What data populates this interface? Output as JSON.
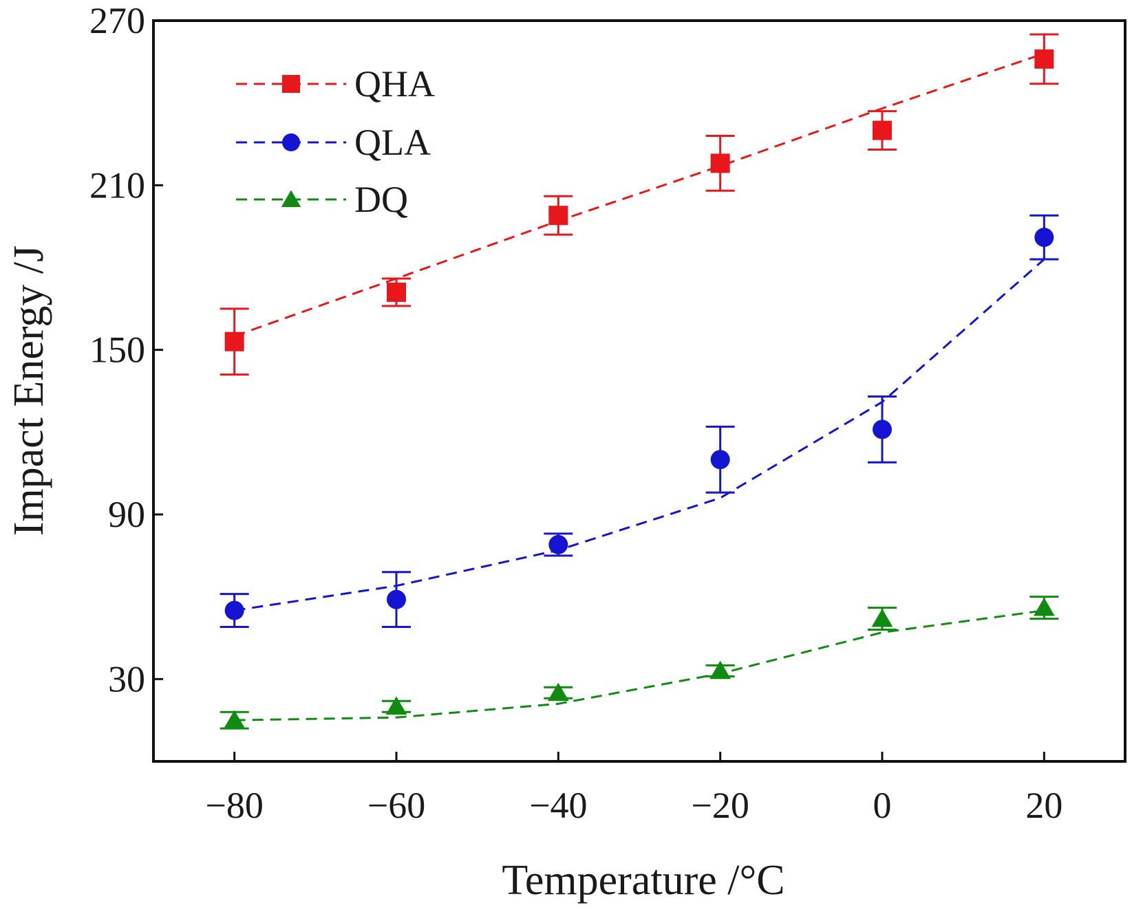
{
  "chart_data": {
    "type": "line",
    "xlabel": "Temperature /°C",
    "ylabel": "Impact Energy /J",
    "x": [
      -80,
      -60,
      -40,
      -20,
      0,
      20
    ],
    "x_ticks": [
      -80,
      -60,
      -40,
      -20,
      0,
      20
    ],
    "x_tick_labels": [
      "−80",
      "−60",
      "−40",
      "−20",
      "0",
      "20"
    ],
    "xlim": [
      -90,
      30
    ],
    "y_ticks": [
      30,
      90,
      150,
      210,
      270
    ],
    "y_tick_labels": [
      "30",
      "90",
      "150",
      "210",
      "270"
    ],
    "ylim": [
      0,
      270
    ],
    "grid": false,
    "legend_position": "top-left",
    "series": [
      {
        "name": "QHA",
        "color": "#e8171b",
        "marker": "square",
        "values": [
          153,
          171,
          199,
          218,
          230,
          256
        ],
        "errors": [
          12,
          5,
          7,
          10,
          7,
          9
        ],
        "fit": [
          155,
          176,
          197,
          217,
          238,
          258
        ]
      },
      {
        "name": "QLA",
        "color": "#1414d2",
        "marker": "circle",
        "values": [
          55,
          59,
          79,
          110,
          121,
          191
        ],
        "errors": [
          6,
          10,
          4,
          12,
          12,
          8
        ],
        "fit": [
          55,
          64,
          77,
          96,
          131,
          183
        ]
      },
      {
        "name": "DQ",
        "color": "#118a11",
        "marker": "triangle",
        "values": [
          15,
          20,
          25,
          33,
          52,
          56
        ],
        "errors": [
          3,
          2,
          2,
          2,
          4,
          4
        ],
        "fit": [
          15,
          16,
          21,
          32,
          47,
          55
        ]
      }
    ]
  }
}
